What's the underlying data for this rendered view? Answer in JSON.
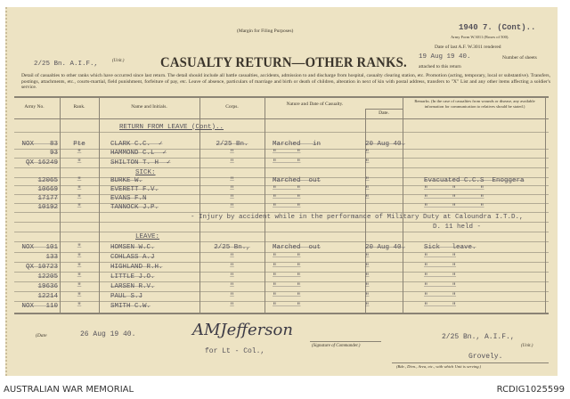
{
  "header": {
    "margin_note": "(Margin for Filing Purposes)",
    "sheet_ref": "1940 7. (Cont)..",
    "army_form": "Army Form W.3011 (Boxes of 500).",
    "date_last_label": "Date of last A.F. W.3011 rendered",
    "date_last_value": "19 Aug 19 40.",
    "sheets_label": "Number of sheets",
    "attached_label": "attached to this return",
    "unit_value": "2/25 Bn. A.I.F.,",
    "unit_label": "(Unit.)",
    "title": "CASUALTY RETURN—OTHER RANKS.",
    "description": "Detail of casualties to other ranks which have occurred since last return. The detail should include all battle casualties, accidents, admission to and discharge from hospital, casualty clearing station, etc. Promotion (acting, temporary, local or substantive). Transfers, postings, attachments, etc., courts-martial, field punishment, forfeiture of pay, etc. Leave of absence, particulars of marriage and birth or death of children, alteration in next of kin with postal address, transfers to \"X\" List and any other items affecting a soldier's service."
  },
  "columns": {
    "army_no": "Army No.",
    "rank": "Rank.",
    "name": "Name and Initials.",
    "corps": "Corps.",
    "nature": "Nature and Date of Casualty.",
    "date": "Date.",
    "remarks": "Remarks. (In the case of casualties from wounds or disease, any available information for communication to relatives should be stated.)"
  },
  "rows": [
    {
      "section": "RETURN FROM LEAVE (Cont).."
    },
    {
      "army_no": "NOX    83",
      "rank": "Pte",
      "name": "CLARK C.C.  ✓",
      "corps": "2/25 Bn.",
      "nature": "Marched   in",
      "date": "20 Aug 40.",
      "remarks": ""
    },
    {
      "army_no": "93",
      "rank": "\"",
      "name": "HAMMOND C.L  ✓",
      "corps": "\"",
      "nature": "\"     \"",
      "date": "\"",
      "remarks": ""
    },
    {
      "army_no": "QX 16249",
      "rank": "\"",
      "name": "SHILTON T. H  ✓",
      "corps": "\"",
      "nature": "\"     \"",
      "date": "\"",
      "remarks": ""
    },
    {
      "section": "SICK:"
    },
    {
      "army_no": "12065",
      "rank": "\"",
      "name": "BURKE W.",
      "corps": "\"",
      "nature": "Marched  out",
      "date": "\"",
      "remarks": "Evacuated C.C.S  Enoggera"
    },
    {
      "army_no": "10669",
      "rank": "\"",
      "name": "EVERETT F.V.",
      "corps": "\"",
      "nature": "\"     \"",
      "date": "\"",
      "remarks": "\"      \"      \""
    },
    {
      "army_no": "17177",
      "rank": "\"",
      "name": "EVANS F.N",
      "corps": "\"",
      "nature": "\"     \"",
      "date": "\"",
      "remarks": "\"      \"      \""
    },
    {
      "army_no": "10192",
      "rank": "\"",
      "name": "TANNOCK J.P.",
      "corps": "\"",
      "nature": "\"     \"",
      "date": "",
      "remarks": "\"      \"      \""
    },
    {
      "note": "- Injury by accident while in the performance of Military Duty at Caloundra I.T.D.,"
    },
    {
      "note2": "D. 11 held -"
    },
    {
      "section": "LEAVE:"
    },
    {
      "army_no": "NOX   101",
      "rank": "\"",
      "name": "HOMSEN W.C.",
      "corps": "2/25 Bn.,",
      "nature": "Marched  out",
      "date": "20 Aug 40.",
      "remarks": "Sick   leave."
    },
    {
      "army_no": "133",
      "rank": "\"",
      "name": "COHLASS A.J",
      "corps": "\"",
      "nature": "\"     \"",
      "date": "\"",
      "remarks": "\"      \""
    },
    {
      "army_no": "QX 10723",
      "rank": "\"",
      "name": "HIGHLAND R.H.",
      "corps": "\"",
      "nature": "\"     \"",
      "date": "\"",
      "remarks": "\"      \""
    },
    {
      "army_no": "12205",
      "rank": "\"",
      "name": "LITTLE J.O.",
      "corps": "\"",
      "nature": "\"     \"",
      "date": "\"",
      "remarks": "\"      \""
    },
    {
      "army_no": "19636",
      "rank": "\"",
      "name": "LARSEN R.V.",
      "corps": "\"",
      "nature": "\"     \"",
      "date": "\"",
      "remarks": "\"      \""
    },
    {
      "army_no": "12214",
      "rank": "\"",
      "name": "PAUL S.J",
      "corps": "\"",
      "nature": "\"     \"",
      "date": "\"",
      "remarks": "\"      \""
    },
    {
      "army_no": "NOX   110",
      "rank": "\"",
      "name": "SMITH C.W.",
      "corps": "\"",
      "nature": "\"     \"",
      "date": "\"",
      "remarks": "\"      \""
    }
  ],
  "signoff": {
    "date_label": "(Date",
    "date_value": "26 Aug 19 40.",
    "signature": "AMJefferson",
    "for_rank": "for Lt - Col.,",
    "signature_label": "(Signature of Commander.)",
    "unit_value": "2/25 Bn., A.I.F.,",
    "unit_label": "(Unit.)",
    "location_value": "Grovely.",
    "location_label": "(Bde., Divn., Area, etc., with which Unit is serving.)"
  },
  "footer": {
    "left": "AUSTRALIAN WAR MEMORIAL",
    "right": "RCDIG1025599"
  },
  "colors": {
    "paper": "#ede3c3",
    "typewriter": "#55525a",
    "ink": "#3b352c"
  }
}
